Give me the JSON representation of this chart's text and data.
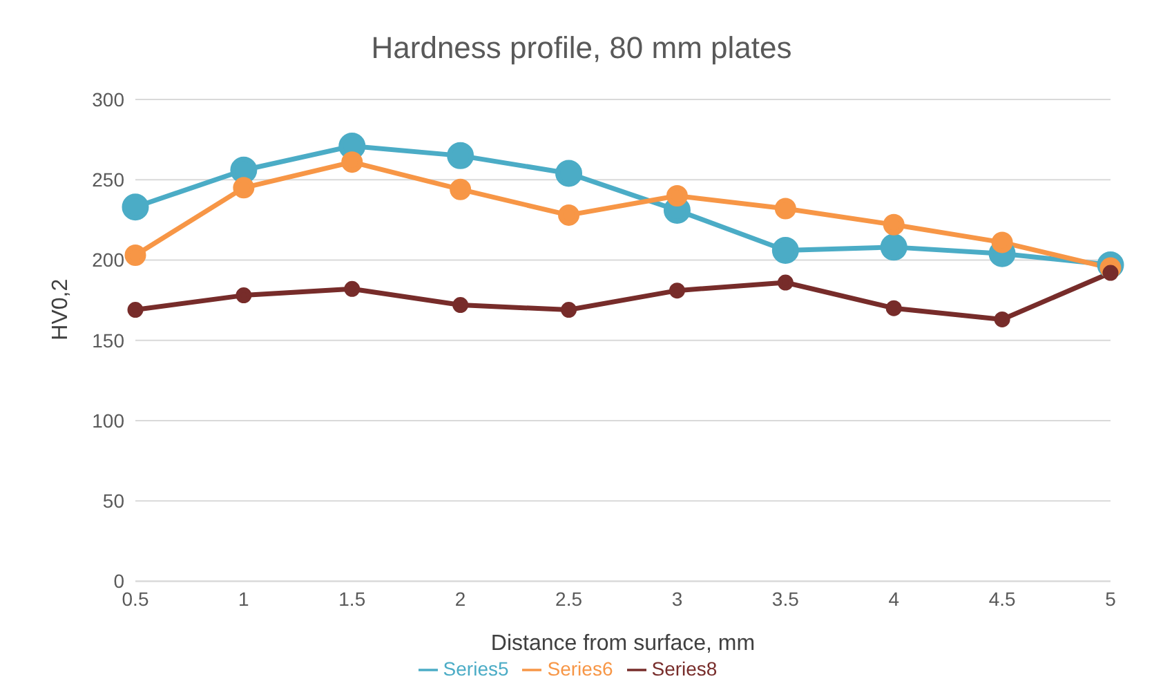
{
  "chart_data": {
    "type": "line",
    "title": "Hardness profile, 80 mm plates",
    "xlabel": "Distance from surface, mm",
    "ylabel": "HV0,2",
    "categories": [
      "0.5",
      "1",
      "1.5",
      "2",
      "2.5",
      "3",
      "3.5",
      "4",
      "4.5",
      "5"
    ],
    "series": [
      {
        "name": "Series5",
        "color": "#4bacc6",
        "values": [
          233,
          256,
          271,
          265,
          254,
          231,
          206,
          208,
          204,
          197
        ]
      },
      {
        "name": "Series6",
        "color": "#f79646",
        "values": [
          203,
          245,
          261,
          244,
          228,
          240,
          232,
          222,
          211,
          195
        ]
      },
      {
        "name": "Series8",
        "color": "#772c2a",
        "values": [
          169,
          178,
          182,
          172,
          169,
          181,
          186,
          170,
          163,
          192
        ]
      }
    ],
    "ylim": [
      0,
      300
    ],
    "yticks": [
      0,
      50,
      100,
      150,
      200,
      250,
      300
    ],
    "grid": "y",
    "legend": "bottom",
    "marker": "circle",
    "line_style": "solid"
  }
}
